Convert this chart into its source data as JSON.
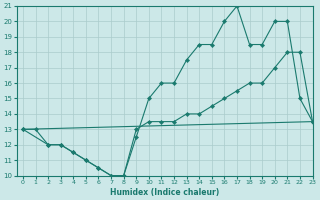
{
  "xlabel": "Humidex (Indice chaleur)",
  "bg_color": "#cce8e8",
  "line_color": "#1a7a6e",
  "grid_color": "#aacccc",
  "xlim": [
    -0.5,
    23
  ],
  "ylim": [
    10,
    21
  ],
  "xticks": [
    0,
    1,
    2,
    3,
    4,
    5,
    6,
    7,
    8,
    9,
    10,
    11,
    12,
    13,
    14,
    15,
    16,
    17,
    18,
    19,
    20,
    21,
    22,
    23
  ],
  "yticks": [
    10,
    11,
    12,
    13,
    14,
    15,
    16,
    17,
    18,
    19,
    20,
    21
  ],
  "line1_x": [
    0,
    1,
    2,
    3,
    4,
    5,
    6,
    7,
    8,
    9,
    10,
    11,
    12,
    13,
    14,
    15,
    16,
    17,
    18,
    19,
    20,
    21,
    22,
    23
  ],
  "line1_y": [
    13,
    13,
    12,
    12,
    11.5,
    11,
    10.5,
    10,
    10,
    12.5,
    15,
    16,
    16,
    17.5,
    18.5,
    18.5,
    20,
    21,
    18.5,
    18.5,
    20,
    20,
    15,
    13.5
  ],
  "line2_x": [
    0,
    23
  ],
  "line2_y": [
    13,
    13.5
  ],
  "line3_x": [
    0,
    2,
    3,
    4,
    5,
    6,
    7,
    8,
    9,
    10,
    11,
    12,
    13,
    14,
    15,
    16,
    17,
    18,
    19,
    20,
    21,
    22,
    23
  ],
  "line3_y": [
    13,
    12,
    12,
    11.5,
    11,
    10.5,
    10,
    10,
    13,
    13.5,
    13.5,
    13.5,
    14,
    14,
    14.5,
    15,
    15.5,
    16,
    16,
    17,
    18,
    18,
    13.5
  ]
}
